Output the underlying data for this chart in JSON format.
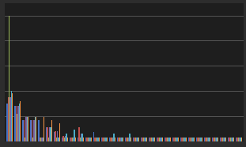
{
  "background_color": "#2d2d2d",
  "plot_bg_color": "#1e1e1e",
  "gridline_color": "#6b6b6b",
  "bar_width": 0.8,
  "series_colors": [
    "#4472c4",
    "#c0504d",
    "#9bbb59",
    "#8064a2",
    "#4bacc6",
    "#f79646"
  ],
  "n_series": 6,
  "groups": [
    [
      30,
      35,
      100,
      35,
      40,
      38
    ],
    [
      28,
      28,
      22,
      28,
      30,
      32
    ],
    [
      17,
      17,
      3,
      19,
      19,
      19
    ],
    [
      17,
      17,
      3,
      17,
      19,
      19
    ],
    [
      17,
      3,
      3,
      3,
      3,
      19
    ],
    [
      11,
      11,
      3,
      11,
      11,
      17
    ],
    [
      7,
      8,
      3,
      8,
      3,
      14
    ],
    [
      3,
      4,
      3,
      4,
      6,
      3
    ],
    [
      3,
      3,
      3,
      3,
      9,
      3
    ],
    [
      3,
      11,
      3,
      6,
      6,
      3
    ],
    [
      3,
      3,
      3,
      3,
      3,
      3
    ],
    [
      7,
      3,
      3,
      3,
      3,
      3
    ],
    [
      3,
      3,
      3,
      3,
      3,
      3
    ],
    [
      3,
      3,
      3,
      3,
      6,
      3
    ],
    [
      3,
      3,
      3,
      3,
      3,
      3
    ],
    [
      3,
      3,
      3,
      3,
      6,
      3
    ],
    [
      3,
      3,
      3,
      3,
      3,
      3
    ],
    [
      3,
      3,
      3,
      3,
      3,
      3
    ],
    [
      3,
      3,
      3,
      3,
      3,
      3
    ],
    [
      3,
      3,
      3,
      3,
      3,
      3
    ],
    [
      3,
      3,
      3,
      3,
      3,
      3
    ],
    [
      3,
      3,
      3,
      3,
      3,
      3
    ],
    [
      3,
      3,
      3,
      3,
      3,
      3
    ],
    [
      3,
      3,
      3,
      3,
      3,
      3
    ],
    [
      3,
      3,
      3,
      3,
      3,
      3
    ],
    [
      3,
      3,
      3,
      3,
      3,
      3
    ],
    [
      3,
      3,
      3,
      3,
      3,
      3
    ],
    [
      3,
      3,
      3,
      3,
      3,
      3
    ],
    [
      3,
      3,
      3,
      3,
      3,
      3
    ],
    [
      3,
      3,
      3,
      3,
      3,
      3
    ]
  ],
  "ylim": [
    0,
    110
  ],
  "yticks": [
    20,
    40,
    60,
    80,
    100
  ],
  "figsize": [
    3.11,
    1.86
  ],
  "dpi": 100
}
